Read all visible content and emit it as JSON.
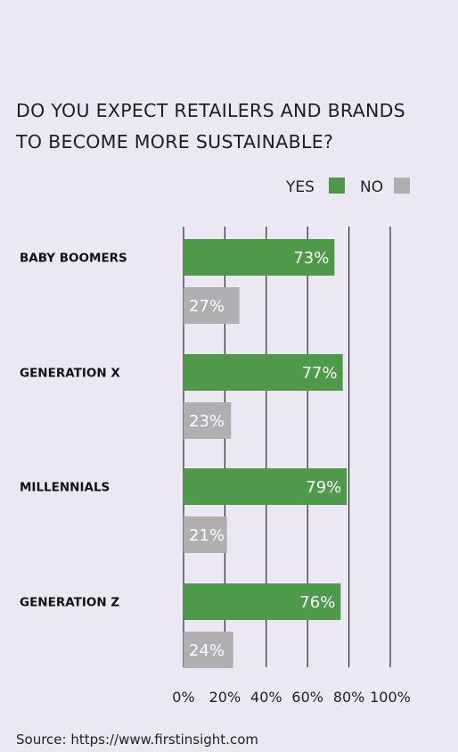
{
  "chart_data": {
    "type": "bar",
    "title_lines": [
      "DO YOU EXPECT RETAILERS AND BRANDS",
      "TO BECOME MORE SUSTAINABLE?"
    ],
    "categories": [
      "BABY BOOMERS",
      "GENERATION X",
      "MILLENNIALS",
      "GENERATION Z"
    ],
    "series": [
      {
        "name": "YES",
        "color": "#4e9a4a",
        "values": [
          73,
          77,
          79,
          76
        ],
        "labels": [
          "73%",
          "77%",
          "79%",
          "76%"
        ]
      },
      {
        "name": "NO",
        "color": "#b0aeb0",
        "values": [
          27,
          23,
          21,
          24
        ],
        "labels": [
          "27%",
          "23%",
          "21%",
          "24%"
        ]
      }
    ],
    "xlim": [
      0,
      100
    ],
    "x_ticks": [
      0,
      20,
      40,
      60,
      80,
      100
    ],
    "x_tick_labels": [
      "0%",
      "20%",
      "40%",
      "60%",
      "80%",
      "100%"
    ],
    "orientation": "horizontal",
    "grid": true,
    "legend_placement": "top-right"
  },
  "source": "Source: https://www.firstinsight.com"
}
